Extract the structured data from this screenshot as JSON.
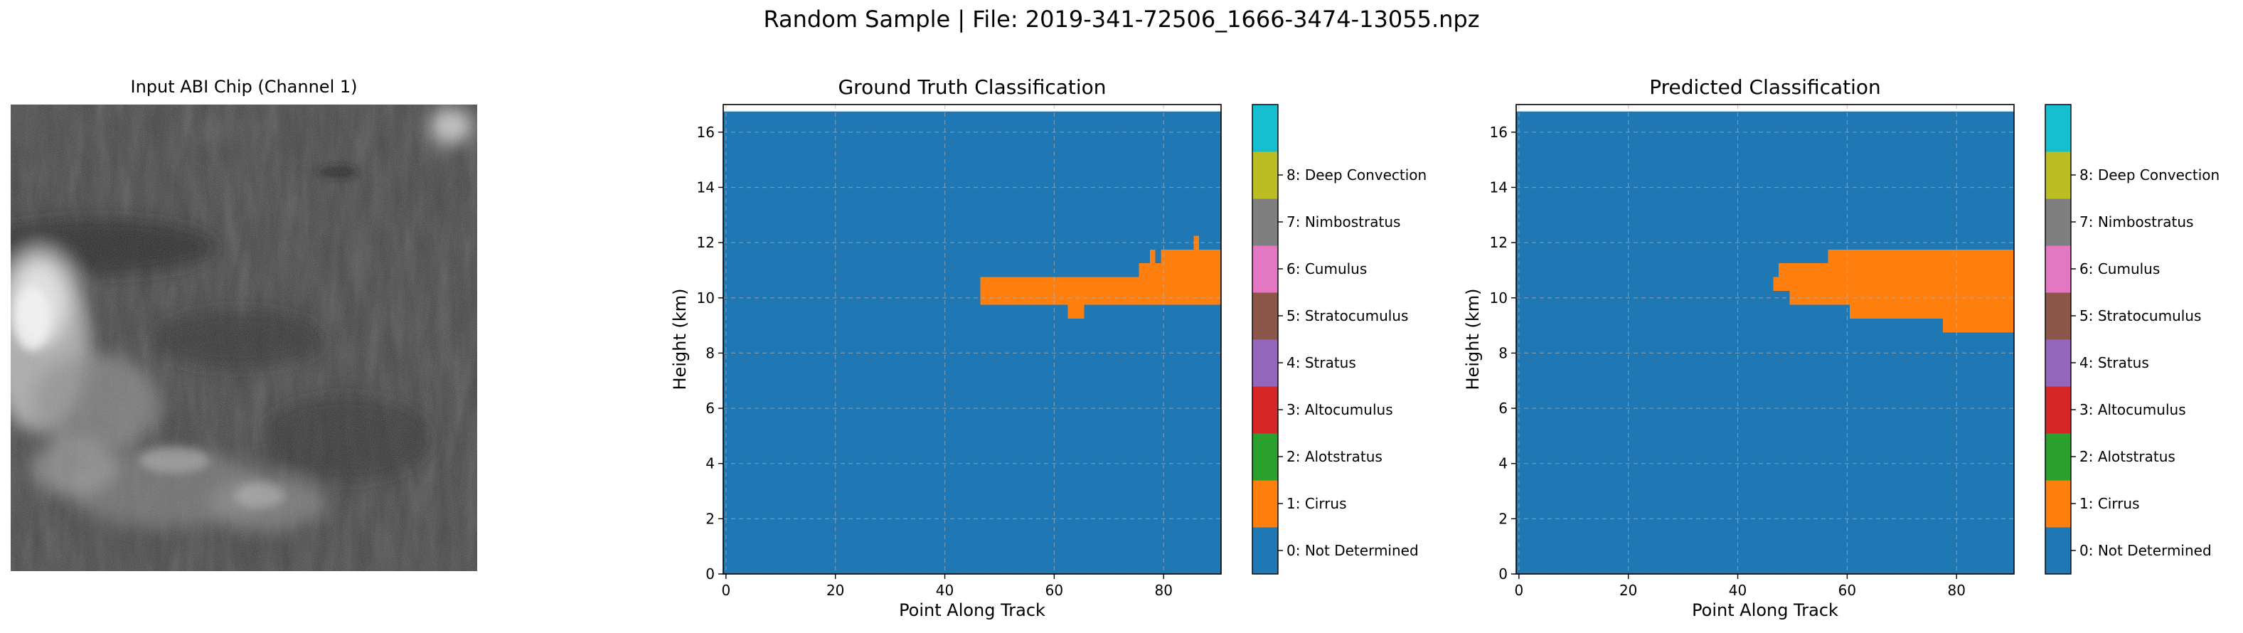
{
  "suptitle": "Random Sample | File: 2019-341-72506_1666-3474-13055.npz",
  "image_panel": {
    "title": "Input ABI Chip (Channel 1)"
  },
  "colorbar": {
    "classes": [
      {
        "value": 0,
        "label": "0: Not Determined",
        "color": "#1f77b4"
      },
      {
        "value": 1,
        "label": "1: Cirrus",
        "color": "#ff7f0e"
      },
      {
        "value": 2,
        "label": "2: Alotstratus",
        "color": "#2ca02c"
      },
      {
        "value": 3,
        "label": "3: Altocumulus",
        "color": "#d62728"
      },
      {
        "value": 4,
        "label": "4: Stratus",
        "color": "#9467bd"
      },
      {
        "value": 5,
        "label": "5: Stratocumulus",
        "color": "#8c564b"
      },
      {
        "value": 6,
        "label": "6: Cumulus",
        "color": "#e377c2"
      },
      {
        "value": 7,
        "label": "7: Nimbostratus",
        "color": "#7f7f7f"
      },
      {
        "value": 8,
        "label": "8: Deep Convection",
        "color": "#bcbd22"
      },
      {
        "value": 9,
        "label": "",
        "color": "#17becf"
      }
    ]
  },
  "chart_data": [
    {
      "type": "heatmap",
      "title": "Ground Truth Classification",
      "xlabel": "Point Along Track",
      "ylabel": "Height (km)",
      "xlim": [
        -0.5,
        90.5
      ],
      "ylim": [
        0,
        17
      ],
      "xticks": [
        0,
        20,
        40,
        60,
        80
      ],
      "yticks": [
        0,
        2,
        4,
        6,
        8,
        10,
        12,
        14,
        16
      ],
      "grid": true,
      "background_class": 0,
      "data_top": 16.75,
      "regions": [
        {
          "class": 1,
          "x": [
            46.5,
            90.5
          ],
          "y": [
            9.75,
            10.75
          ]
        },
        {
          "class": 1,
          "x": [
            75.5,
            90.5
          ],
          "y": [
            10.75,
            11.25
          ]
        },
        {
          "class": 1,
          "x": [
            77.5,
            78.5
          ],
          "y": [
            11.25,
            11.75
          ]
        },
        {
          "class": 1,
          "x": [
            79.5,
            90.5
          ],
          "y": [
            11.25,
            11.75
          ]
        },
        {
          "class": 1,
          "x": [
            85.5,
            86.5
          ],
          "y": [
            11.75,
            12.25
          ]
        },
        {
          "class": 1,
          "x": [
            62.5,
            65.5
          ],
          "y": [
            9.25,
            9.75
          ]
        },
        {
          "class": 0,
          "x": [
            89.5,
            90.5
          ],
          "y": [
            9.25,
            9.75
          ]
        }
      ]
    },
    {
      "type": "heatmap",
      "title": "Predicted Classification",
      "xlabel": "Point Along Track",
      "ylabel": "Height (km)",
      "xlim": [
        -0.5,
        90.5
      ],
      "ylim": [
        0,
        17
      ],
      "xticks": [
        0,
        20,
        40,
        60,
        80
      ],
      "yticks": [
        0,
        2,
        4,
        6,
        8,
        10,
        12,
        14,
        16
      ],
      "grid": true,
      "background_class": 0,
      "data_top": 16.75,
      "regions": [
        {
          "class": 1,
          "x": [
            47.5,
            90.5
          ],
          "y": [
            10.75,
            11.25
          ]
        },
        {
          "class": 1,
          "x": [
            56.5,
            90.5
          ],
          "y": [
            11.25,
            11.75
          ]
        },
        {
          "class": 1,
          "x": [
            46.5,
            90.5
          ],
          "y": [
            10.25,
            10.75
          ]
        },
        {
          "class": 1,
          "x": [
            49.5,
            90.5
          ],
          "y": [
            9.75,
            10.25
          ]
        },
        {
          "class": 1,
          "x": [
            60.5,
            90.5
          ],
          "y": [
            9.25,
            9.75
          ]
        },
        {
          "class": 1,
          "x": [
            77.5,
            90.5
          ],
          "y": [
            8.75,
            9.25
          ]
        }
      ]
    }
  ]
}
